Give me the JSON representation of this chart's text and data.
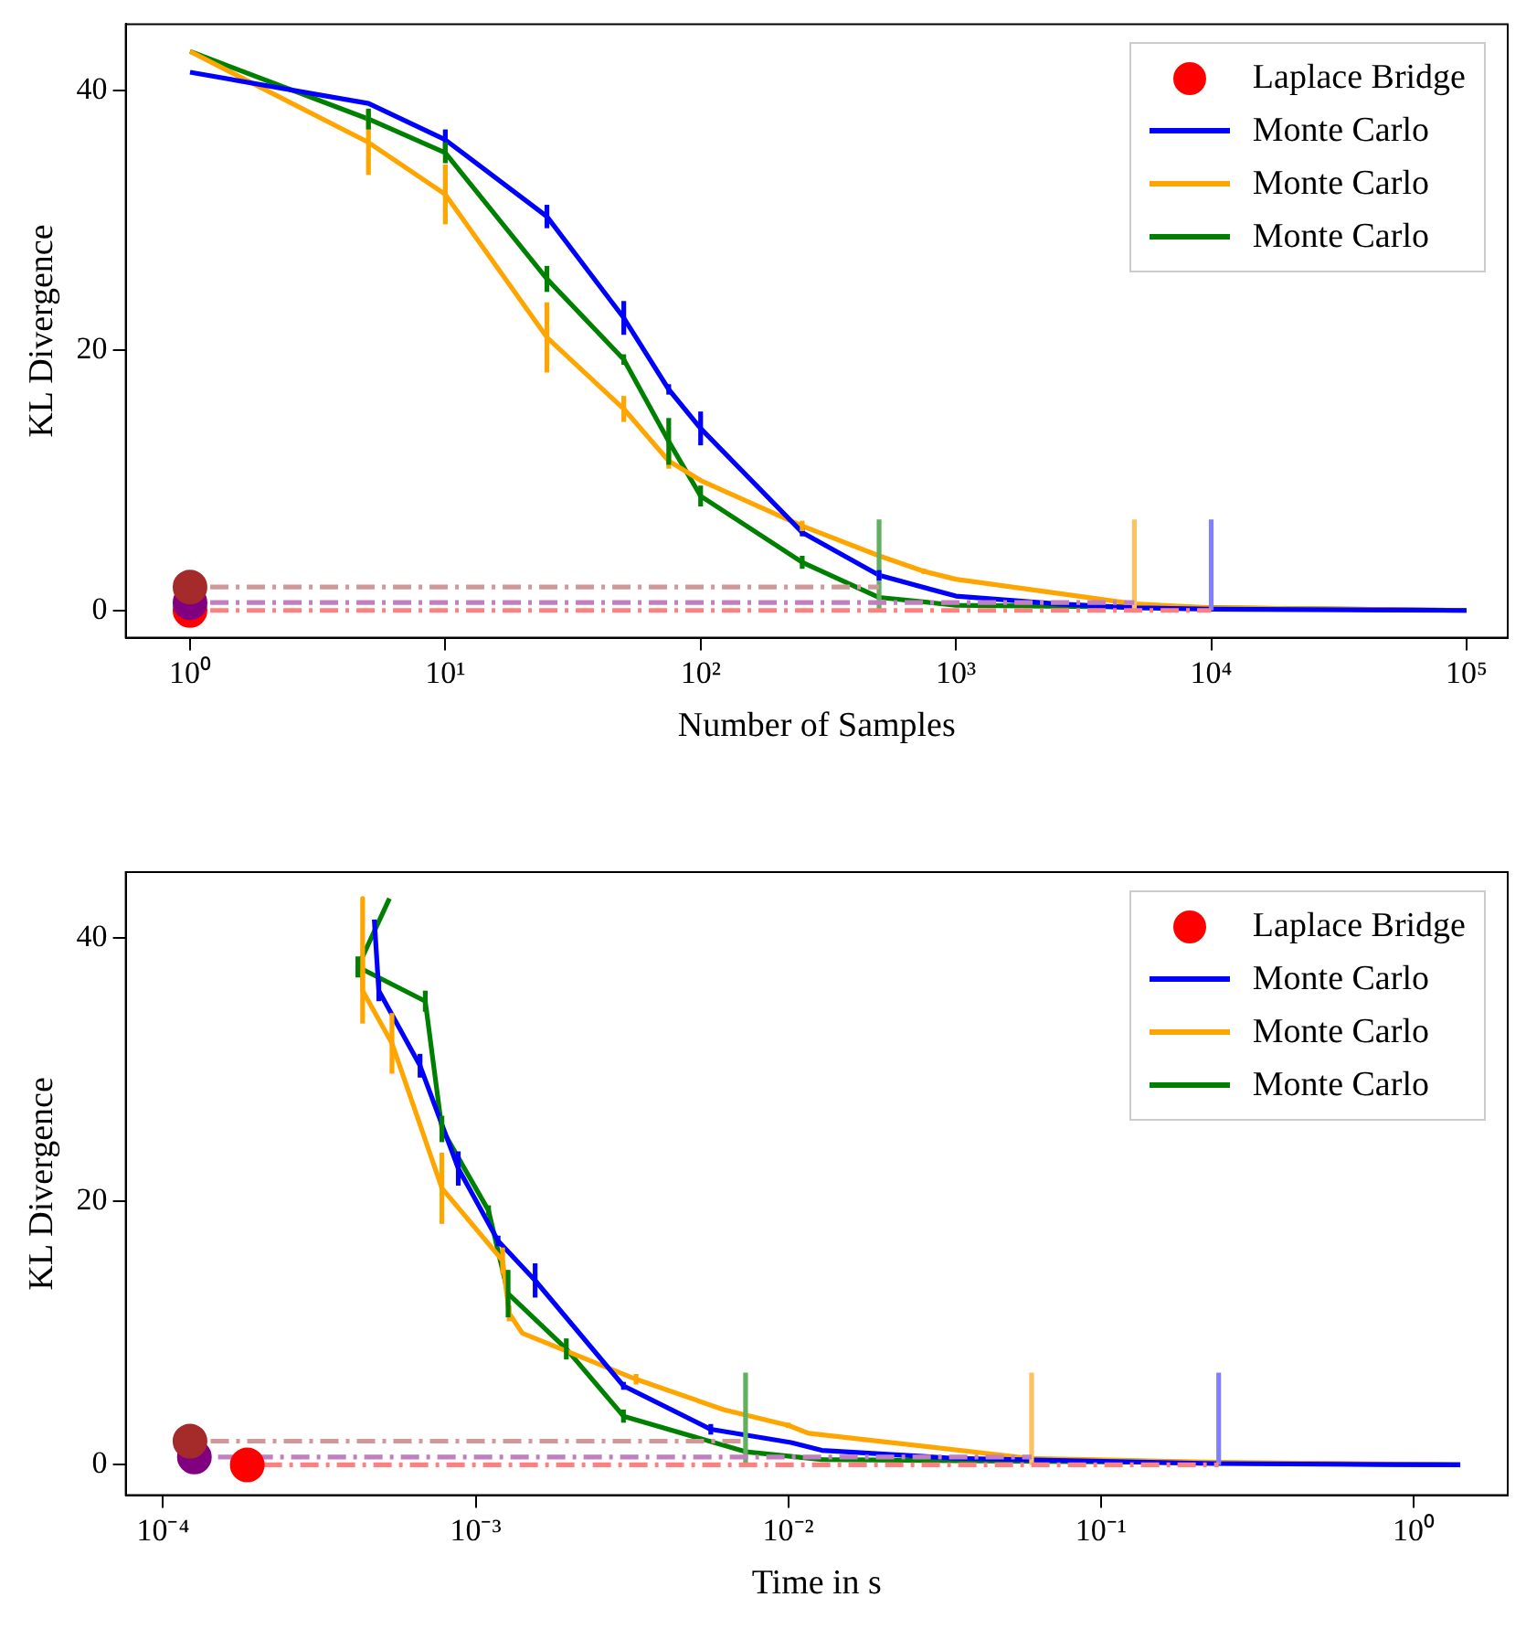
{
  "chart_data": [
    {
      "type": "line",
      "xlabel": "Number of Samples",
      "ylabel": "KL Divergence",
      "log": "x",
      "xlim": [
        0.56,
        145000
      ],
      "xticks": [
        {
          "value": 1,
          "label": "10⁰"
        },
        {
          "value": 10,
          "label": "10¹"
        },
        {
          "value": 100,
          "label": "10²"
        },
        {
          "value": 1000,
          "label": "10³"
        },
        {
          "value": 10000,
          "label": "10⁴"
        },
        {
          "value": 100000,
          "label": "10⁵"
        }
      ],
      "ylim": [
        -2.1,
        45.1
      ],
      "yticks": [
        0,
        20,
        40
      ],
      "legend": "top right",
      "series": [
        {
          "type": "line",
          "color": "#ff8080",
          "line_style": "dashed",
          "marker": "none",
          "x": [
            1.2,
            10000
          ],
          "values": [
            0,
            0
          ]
        },
        {
          "type": "line",
          "color": "#c080c0",
          "line_style": "dashed",
          "marker": "none",
          "x": [
            1.2,
            5000
          ],
          "values": [
            0.6,
            0.6
          ]
        },
        {
          "type": "line",
          "color": "#d09898",
          "line_style": "dashed",
          "marker": "none",
          "x": [
            1.2,
            500
          ],
          "values": [
            1.8,
            1.8
          ]
        },
        {
          "type": "line",
          "color": "#8080ff",
          "marker": "none",
          "x": [
            10000,
            10000
          ],
          "values": [
            0,
            7
          ]
        },
        {
          "type": "line",
          "color": "#ffc060",
          "marker": "none",
          "x": [
            5000,
            5000
          ],
          "values": [
            0,
            7
          ]
        },
        {
          "type": "line",
          "color": "#60b060",
          "marker": "none",
          "x": [
            500,
            500
          ],
          "values": [
            0,
            7
          ]
        },
        {
          "name": "Laplace Bridge",
          "type": "scatter",
          "marker": "circle",
          "color": "#ff0000",
          "colors": [
            "#ff0000",
            "#800080",
            "#a52a2a"
          ],
          "x": [
            1,
            1,
            1
          ],
          "values": [
            0,
            0.6,
            1.8
          ]
        },
        {
          "name": "Monte Carlo",
          "type": "line",
          "marker": "none",
          "color": "#0000ff",
          "x": [
            1,
            5,
            10,
            25,
            50,
            75,
            100,
            250,
            500,
            1000,
            2500,
            5000,
            10000,
            100000
          ],
          "values": [
            41.4,
            39,
            36.2,
            30.3,
            22.5,
            17,
            14,
            6,
            2.7,
            1.1,
            0.5,
            0.2,
            0.1,
            0
          ],
          "errors": [
            null,
            null,
            0.8,
            0.9,
            1.3,
            0.4,
            1.3,
            0.3,
            0.4,
            null,
            null,
            null,
            null,
            null
          ]
        },
        {
          "name": "Monte Carlo",
          "type": "line",
          "marker": "none",
          "color": "#ffa500",
          "x": [
            1,
            5,
            10,
            25,
            50,
            75,
            100,
            250,
            500,
            750,
            1000,
            5000,
            10000,
            100000
          ],
          "values": [
            43,
            36,
            32,
            21,
            15.5,
            11.5,
            10,
            6.5,
            4.2,
            3,
            2.4,
            0.5,
            0.2,
            0
          ],
          "errors": [
            null,
            2.5,
            2.3,
            2.7,
            1,
            0.6,
            null,
            0.4,
            null,
            0.2,
            null,
            null,
            null,
            null
          ]
        },
        {
          "name": "Monte Carlo",
          "type": "line",
          "marker": "none",
          "color": "#008000",
          "x": [
            1,
            5,
            10,
            25,
            50,
            75,
            100,
            250,
            500,
            1000,
            100000
          ],
          "values": [
            43,
            37.8,
            35.2,
            25.5,
            19.3,
            13,
            8.8,
            3.7,
            1,
            0.4,
            0
          ],
          "errors": [
            null,
            0.8,
            0.8,
            1,
            0.4,
            1.8,
            0.8,
            0.5,
            null,
            null,
            null
          ]
        }
      ]
    },
    {
      "type": "line",
      "xlabel": "Time in s",
      "ylabel": "KL Divergence",
      "log": "x",
      "xlim": [
        7.6e-05,
        2
      ],
      "xticks": [
        {
          "value": 0.0001,
          "label": "10⁻⁴"
        },
        {
          "value": 0.001,
          "label": "10⁻³"
        },
        {
          "value": 0.01,
          "label": "10⁻²"
        },
        {
          "value": 0.1,
          "label": "10⁻¹"
        },
        {
          "value": 1,
          "label": "10⁰"
        }
      ],
      "ylim": [
        -2.3,
        45
      ],
      "yticks": [
        0,
        20,
        40
      ],
      "legend": "top right",
      "series": [
        {
          "type": "line",
          "color": "#ff8080",
          "line_style": "dashed",
          "marker": "none",
          "x": [
            0.00021,
            0.238
          ],
          "values": [
            0,
            0
          ]
        },
        {
          "type": "line",
          "color": "#c080c0",
          "line_style": "dashed",
          "marker": "none",
          "x": [
            0.00015,
            0.06
          ],
          "values": [
            0.6,
            0.6
          ]
        },
        {
          "type": "line",
          "color": "#d09898",
          "line_style": "dashed",
          "marker": "none",
          "x": [
            0.000142,
            0.0073
          ],
          "values": [
            1.8,
            1.8
          ]
        },
        {
          "type": "line",
          "color": "#8080ff",
          "marker": "none",
          "x": [
            0.238,
            0.238
          ],
          "values": [
            0,
            7
          ]
        },
        {
          "type": "line",
          "color": "#ffc060",
          "marker": "none",
          "x": [
            0.06,
            0.06
          ],
          "values": [
            0,
            7
          ]
        },
        {
          "type": "line",
          "color": "#60b060",
          "marker": "none",
          "x": [
            0.0073,
            0.0073
          ],
          "values": [
            0,
            7
          ]
        },
        {
          "name": "Laplace Bridge",
          "type": "scatter",
          "marker": "circle",
          "color": "#ff0000",
          "colors": [
            "#ff0000",
            "#800080",
            "#a52a2a"
          ],
          "x": [
            0.000186,
            0.000126,
            0.000122
          ],
          "values": [
            0,
            0.6,
            1.8
          ]
        },
        {
          "name": "Monte Carlo",
          "type": "line",
          "marker": "none",
          "color": "#0000ff",
          "x": [
            0.000474,
            0.00049,
            0.000664,
            0.00088,
            0.00118,
            0.00155,
            0.00297,
            0.00565,
            0.0102,
            0.0128,
            0.034,
            0.23,
            1.41
          ],
          "values": [
            41.4,
            36,
            30.3,
            22.5,
            17,
            14,
            6,
            2.7,
            1.7,
            1.1,
            0.5,
            0.1,
            0
          ],
          "errors": [
            null,
            0.8,
            0.9,
            1.3,
            0.4,
            1.3,
            0.3,
            0.4,
            null,
            null,
            null,
            null,
            null
          ]
        },
        {
          "name": "Monte Carlo",
          "type": "line",
          "marker": "none",
          "color": "#ffa500",
          "x": [
            0.000435,
            0.000435,
            0.00054,
            0.00078,
            0.00122,
            0.00128,
            0.00141,
            0.00326,
            0.0062,
            0.01,
            0.0116,
            0.059,
            0.235,
            1.41
          ],
          "values": [
            43,
            36,
            32,
            21,
            15.5,
            11.5,
            10,
            6.5,
            4.2,
            3,
            2.4,
            0.5,
            0.2,
            0
          ],
          "errors": [
            null,
            2.5,
            2.3,
            2.7,
            1,
            0.6,
            null,
            0.4,
            null,
            0.2,
            null,
            null,
            null,
            null
          ]
        },
        {
          "name": "Monte Carlo",
          "type": "line",
          "marker": "none",
          "color": "#008000",
          "x": [
            0.00053,
            0.00042,
            0.00069,
            0.00078,
            0.0011,
            0.00127,
            0.00195,
            0.00297,
            0.0073,
            0.0128,
            1.41
          ],
          "values": [
            43,
            37.8,
            35.2,
            25.5,
            19.3,
            13,
            8.8,
            3.7,
            1,
            0.4,
            0
          ],
          "errors": [
            null,
            0.8,
            0.8,
            1,
            0.4,
            1.8,
            0.8,
            0.5,
            null,
            null,
            null
          ]
        }
      ]
    }
  ]
}
